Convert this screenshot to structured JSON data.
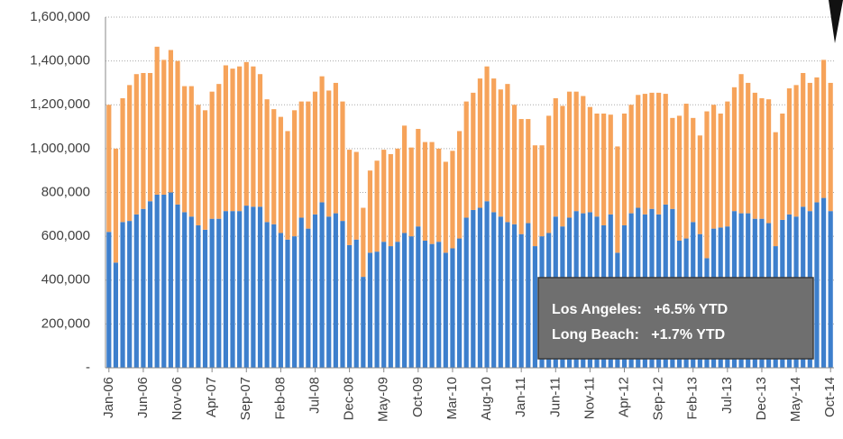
{
  "chart_data": {
    "type": "stacked_bar",
    "categories": [
      "Jan-06",
      null,
      null,
      null,
      null,
      "Jun-06",
      null,
      null,
      null,
      null,
      "Nov-06",
      null,
      null,
      null,
      null,
      "Apr-07",
      null,
      null,
      null,
      null,
      "Sep-07",
      null,
      null,
      null,
      null,
      "Feb-08",
      null,
      null,
      null,
      null,
      "Jul-08",
      null,
      null,
      null,
      null,
      "Dec-08",
      null,
      null,
      null,
      null,
      "May-09",
      null,
      null,
      null,
      null,
      "Oct-09",
      null,
      null,
      null,
      null,
      "Mar-10",
      null,
      null,
      null,
      null,
      "Aug-10",
      null,
      null,
      null,
      null,
      "Jan-11",
      null,
      null,
      null,
      null,
      "Jun-11",
      null,
      null,
      null,
      null,
      "Nov-11",
      null,
      null,
      null,
      null,
      "Apr-12",
      null,
      null,
      null,
      null,
      "Sep-12",
      null,
      null,
      null,
      null,
      "Feb-13",
      null,
      null,
      null,
      null,
      "Jul-13",
      null,
      null,
      null,
      null,
      "Dec-13",
      null,
      null,
      null,
      null,
      "May-14",
      null,
      null,
      null,
      null,
      "Oct-14"
    ],
    "series": [
      {
        "color": "#3d7fcc",
        "values": [
          620000,
          480000,
          665000,
          670000,
          700000,
          725000,
          760000,
          790000,
          790000,
          800000,
          745000,
          710000,
          690000,
          650000,
          630000,
          680000,
          680000,
          715000,
          715000,
          715000,
          740000,
          735000,
          735000,
          665000,
          655000,
          615000,
          585000,
          600000,
          685000,
          635000,
          700000,
          755000,
          690000,
          705000,
          670000,
          560000,
          585000,
          415000,
          525000,
          530000,
          575000,
          555000,
          575000,
          615000,
          600000,
          645000,
          580000,
          565000,
          575000,
          525000,
          545000,
          590000,
          685000,
          720000,
          730000,
          760000,
          710000,
          690000,
          665000,
          655000,
          610000,
          660000,
          555000,
          600000,
          615000,
          690000,
          645000,
          685000,
          715000,
          705000,
          710000,
          690000,
          650000,
          700000,
          525000,
          650000,
          705000,
          730000,
          700000,
          725000,
          700000,
          745000,
          725000,
          580000,
          590000,
          665000,
          610000,
          500000,
          635000,
          640000,
          645000,
          715000,
          705000,
          705000,
          680000,
          680000,
          660000,
          555000,
          675000,
          700000,
          690000,
          735000,
          715000,
          755000,
          775000,
          715000
        ]
      },
      {
        "color": "#f6a35a",
        "values": [
          580000,
          520000,
          565000,
          620000,
          640000,
          620000,
          585000,
          675000,
          615000,
          650000,
          655000,
          575000,
          595000,
          550000,
          545000,
          580000,
          615000,
          665000,
          650000,
          660000,
          655000,
          640000,
          605000,
          560000,
          525000,
          530000,
          495000,
          575000,
          530000,
          580000,
          560000,
          575000,
          575000,
          595000,
          545000,
          435000,
          400000,
          315000,
          375000,
          415000,
          420000,
          420000,
          425000,
          490000,
          405000,
          445000,
          450000,
          465000,
          425000,
          415000,
          445000,
          490000,
          530000,
          535000,
          590000,
          615000,
          610000,
          580000,
          630000,
          545000,
          525000,
          475000,
          460000,
          415000,
          535000,
          540000,
          550000,
          575000,
          545000,
          535000,
          480000,
          470000,
          510000,
          455000,
          485000,
          510000,
          495000,
          515000,
          550000,
          530000,
          555000,
          505000,
          415000,
          570000,
          615000,
          475000,
          450000,
          670000,
          565000,
          520000,
          570000,
          565000,
          635000,
          595000,
          575000,
          550000,
          565000,
          520000,
          485000,
          575000,
          600000,
          610000,
          585000,
          570000,
          630000,
          585000
        ]
      }
    ],
    "ylim": [
      0,
      1600000
    ],
    "yticks": [
      {
        "value": 0,
        "label": "-"
      },
      {
        "value": 200000,
        "label": "200,000"
      },
      {
        "value": 400000,
        "label": "400,000"
      },
      {
        "value": 600000,
        "label": "600,000"
      },
      {
        "value": 800000,
        "label": "800,000"
      },
      {
        "value": 1000000,
        "label": "1,000,000"
      },
      {
        "value": 1200000,
        "label": "1,200,000"
      },
      {
        "value": 1400000,
        "label": "1,400,000"
      },
      {
        "value": 1600000,
        "label": "1,600,000"
      }
    ],
    "grid": true,
    "annotations": [
      "Los Angeles:   +6.5% YTD",
      "Long Beach:   +1.7% YTD"
    ]
  }
}
